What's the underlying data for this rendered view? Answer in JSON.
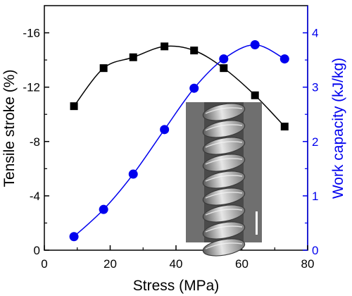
{
  "chart_data": {
    "type": "line",
    "xlabel": "Stress (MPa)",
    "ylabel_left": "Tensile stroke (%)",
    "ylabel_right": "Work capacity (kJ/kg)",
    "xlim": [
      0,
      80
    ],
    "ylim_left": [
      0,
      -18
    ],
    "ylim_right": [
      0,
      4.5
    ],
    "xticks": [
      0,
      20,
      40,
      60,
      80
    ],
    "xtick_labels": [
      "0",
      "20",
      "40",
      "60",
      "80"
    ],
    "yticks_left": [
      0,
      -4,
      -8,
      -12,
      -16
    ],
    "ytick_labels_left": [
      "0",
      "-4",
      "-8",
      "-12",
      "-16"
    ],
    "yticks_right": [
      0,
      1,
      2,
      3,
      4
    ],
    "ytick_labels_right": [
      "0",
      "1",
      "2",
      "3",
      "4"
    ],
    "grid": false,
    "legend": "none",
    "series": [
      {
        "axis": "left",
        "color": "#000000",
        "marker": "square",
        "x": [
          9,
          18,
          27,
          36.5,
          45.5,
          54.5,
          64,
          73
        ],
        "y": [
          -10.6,
          -13.4,
          -14.2,
          -15.0,
          -14.7,
          -13.4,
          -11.4,
          -9.1
        ]
      },
      {
        "axis": "right",
        "color": "#0000ee",
        "marker": "circle",
        "x": [
          9,
          18,
          27,
          36.5,
          45.5,
          54.5,
          64,
          73
        ],
        "y": [
          0.25,
          0.75,
          1.4,
          2.22,
          2.98,
          3.52,
          3.78,
          3.52
        ]
      }
    ]
  },
  "inset": {
    "kind": "SEM micrograph of a coiled yarn",
    "background": "#6f6f6f"
  }
}
